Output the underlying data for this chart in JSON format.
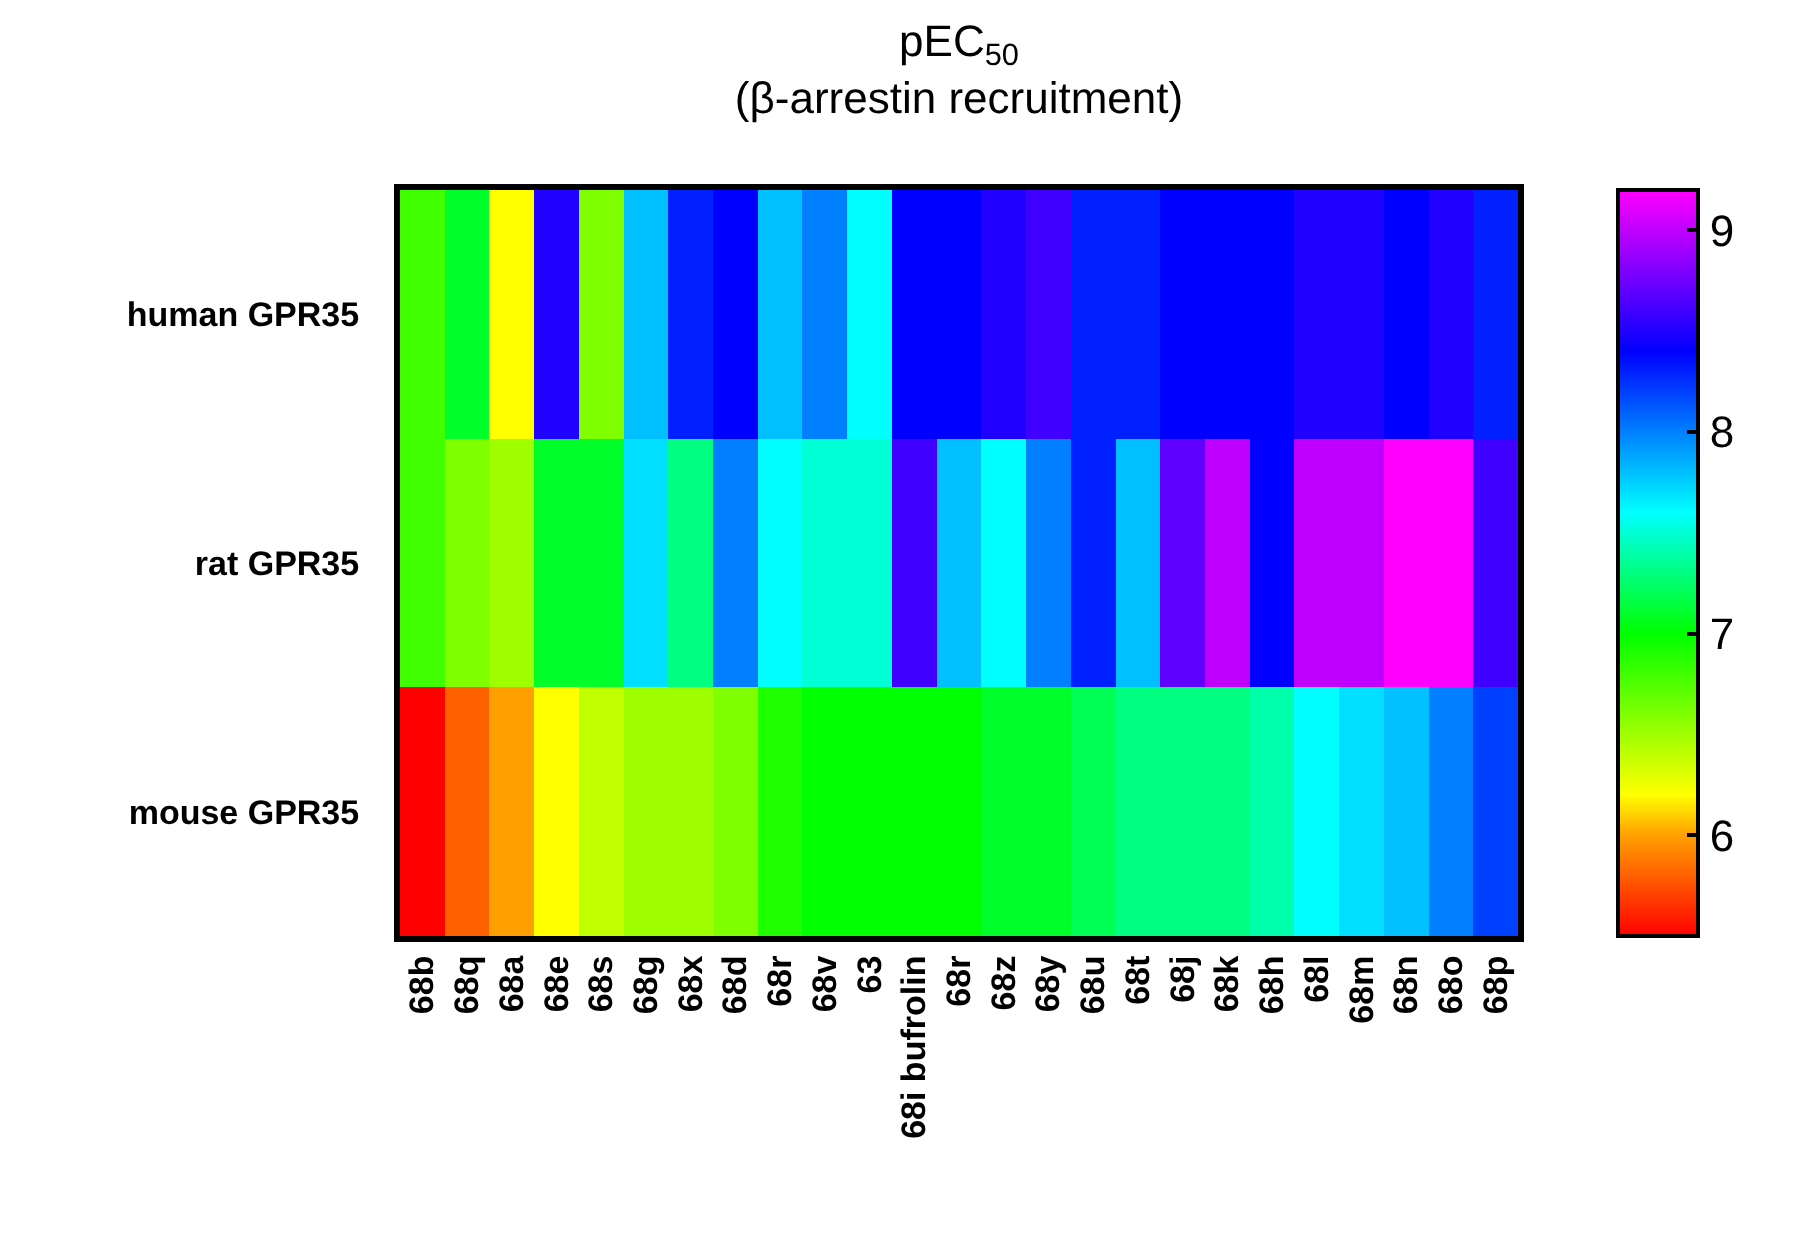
{
  "chart_data": {
    "type": "heatmap",
    "title": "pEC$_{50}$\n(β-arrestin recruitment)",
    "categories": [
      "68b",
      "68q",
      "68a",
      "68e",
      "68s",
      "68g",
      "68x",
      "68d",
      "68r",
      "68v",
      "63",
      "68i bufrolin",
      "68r",
      "68z",
      "68y",
      "68u",
      "68t",
      "68j",
      "68k",
      "68h",
      "68l",
      "68m",
      "68n",
      "68o",
      "68p"
    ],
    "y_categories": [
      "human GPR35",
      "rat GPR35",
      "mouse GPR35"
    ],
    "cells": [
      [
        6.8,
        7.1,
        6.2,
        8.5,
        6.6,
        7.8,
        8.3,
        8.4,
        7.8,
        8.0,
        7.6,
        8.4,
        8.4,
        8.5,
        8.6,
        8.3,
        8.3,
        8.4,
        8.4,
        8.4,
        8.5,
        8.5,
        8.4,
        8.5,
        8.3
      ],
      [
        6.8,
        6.6,
        6.5,
        7.1,
        7.1,
        7.7,
        7.3,
        8.0,
        7.6,
        7.5,
        7.5,
        8.6,
        7.8,
        7.6,
        8.0,
        8.3,
        7.8,
        8.7,
        9.0,
        8.4,
        9.0,
        9.0,
        9.2,
        9.2,
        8.6
      ],
      [
        5.5,
        5.8,
        6.0,
        6.2,
        6.4,
        6.5,
        6.5,
        6.6,
        6.9,
        7.0,
        7.0,
        7.0,
        7.0,
        7.1,
        7.1,
        7.2,
        7.3,
        7.3,
        7.3,
        7.4,
        7.6,
        7.7,
        7.8,
        8.0,
        8.2
      ]
    ],
    "clim": [
      5.5,
      9.2
    ],
    "cticks": [
      6,
      7,
      8,
      9
    ]
  }
}
